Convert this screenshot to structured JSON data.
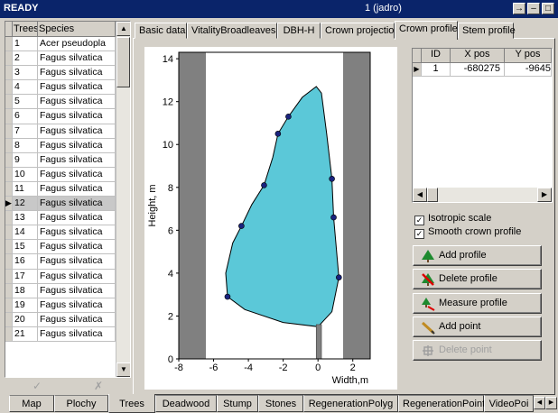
{
  "window": {
    "title": "READY",
    "center_text": "1 (jadro)",
    "buttons": {
      "pin": "→",
      "minimize": "–",
      "maximize": "□"
    }
  },
  "tree_list": {
    "columns": [
      "Trees",
      "Species"
    ],
    "rows": [
      {
        "tree": "1",
        "species": "Acer pseudopla"
      },
      {
        "tree": "2",
        "species": "Fagus silvatica"
      },
      {
        "tree": "3",
        "species": "Fagus silvatica"
      },
      {
        "tree": "4",
        "species": "Fagus silvatica"
      },
      {
        "tree": "5",
        "species": "Fagus silvatica"
      },
      {
        "tree": "6",
        "species": "Fagus silvatica"
      },
      {
        "tree": "7",
        "species": "Fagus silvatica"
      },
      {
        "tree": "8",
        "species": "Fagus silvatica"
      },
      {
        "tree": "9",
        "species": "Fagus silvatica"
      },
      {
        "tree": "10",
        "species": "Fagus silvatica"
      },
      {
        "tree": "11",
        "species": "Fagus silvatica"
      },
      {
        "tree": "12",
        "species": "Fagus silvatica"
      },
      {
        "tree": "13",
        "species": "Fagus silvatica"
      },
      {
        "tree": "14",
        "species": "Fagus silvatica"
      },
      {
        "tree": "15",
        "species": "Fagus silvatica"
      },
      {
        "tree": "16",
        "species": "Fagus silvatica"
      },
      {
        "tree": "17",
        "species": "Fagus silvatica"
      },
      {
        "tree": "18",
        "species": "Fagus silvatica"
      },
      {
        "tree": "19",
        "species": "Fagus silvatica"
      },
      {
        "tree": "20",
        "species": "Fagus silvatica"
      },
      {
        "tree": "21",
        "species": "Fagus silvatica"
      }
    ],
    "selected_tree": "12",
    "tool_icons": [
      "check-icon",
      "cross-icon"
    ]
  },
  "tabs": [
    {
      "label": "Basic data",
      "active": false
    },
    {
      "label": "VitalityBroadleaves",
      "active": false
    },
    {
      "label": "DBH-H",
      "active": false
    },
    {
      "label": "Crown projection",
      "active": false
    },
    {
      "label": "Crown profile",
      "active": true
    },
    {
      "label": "Stem profile",
      "active": false
    }
  ],
  "points_grid": {
    "columns": [
      "ID",
      "X pos",
      "Y pos"
    ],
    "rows": [
      {
        "id": "1",
        "x": "-680275",
        "y": "-9645"
      }
    ]
  },
  "options": {
    "isotropic_label": "Isotropic scale",
    "isotropic_checked": true,
    "smooth_label": "Smooth crown profile",
    "smooth_checked": true
  },
  "buttons": {
    "add_profile": "Add profile",
    "delete_profile": "Delete profile",
    "measure_profile": "Measure profile",
    "add_point": "Add point",
    "delete_point": "Delete point"
  },
  "bottom_tabs": [
    {
      "label": "Map",
      "active": false
    },
    {
      "label": "Plochy",
      "active": false
    },
    {
      "label": "Trees",
      "active": true
    },
    {
      "label": "Deadwood",
      "active": false
    },
    {
      "label": "Stump",
      "active": false
    },
    {
      "label": "Stones",
      "active": false
    },
    {
      "label": "RegenerationPolyg",
      "active": false
    },
    {
      "label": "RegenerationPoint",
      "active": false
    },
    {
      "label": "VideoPoi",
      "active": false
    }
  ],
  "chart_data": {
    "type": "area",
    "xlabel": "Width,m",
    "ylabel": "Height, m",
    "xlim": [
      -8,
      3
    ],
    "ylim": [
      0,
      14.3
    ],
    "x_ticks": [
      -8,
      -6,
      -4,
      -2,
      0,
      2
    ],
    "y_ticks": [
      0,
      2,
      4,
      6,
      8,
      10,
      12,
      14
    ],
    "crown_fill": "#5bc8d8",
    "crown_points": [
      {
        "x": -5.2,
        "y": 2.9
      },
      {
        "x": -4.4,
        "y": 6.2
      },
      {
        "x": -3.1,
        "y": 8.1
      },
      {
        "x": -2.3,
        "y": 10.5
      },
      {
        "x": -1.7,
        "y": 11.3
      },
      {
        "x": 0.8,
        "y": 8.4
      },
      {
        "x": 0.9,
        "y": 6.6
      },
      {
        "x": 1.2,
        "y": 3.8
      }
    ],
    "crown_outline": [
      {
        "x": -5.2,
        "y": 2.9
      },
      {
        "x": -5.3,
        "y": 4.0
      },
      {
        "x": -4.9,
        "y": 5.4
      },
      {
        "x": -4.4,
        "y": 6.2
      },
      {
        "x": -3.8,
        "y": 7.2
      },
      {
        "x": -3.1,
        "y": 8.1
      },
      {
        "x": -2.6,
        "y": 9.4
      },
      {
        "x": -2.3,
        "y": 10.5
      },
      {
        "x": -1.7,
        "y": 11.3
      },
      {
        "x": -0.9,
        "y": 12.2
      },
      {
        "x": -0.1,
        "y": 12.7
      },
      {
        "x": 0.2,
        "y": 12.4
      },
      {
        "x": 0.5,
        "y": 10.5
      },
      {
        "x": 0.8,
        "y": 8.4
      },
      {
        "x": 0.9,
        "y": 6.6
      },
      {
        "x": 1.2,
        "y": 3.8
      },
      {
        "x": 0.8,
        "y": 2.2
      },
      {
        "x": 0.0,
        "y": 1.5
      },
      {
        "x": -2.0,
        "y": 1.7
      },
      {
        "x": -4.2,
        "y": 2.3
      }
    ],
    "stem": {
      "x_left": -0.1,
      "x_right": 0.2,
      "y_bottom": 0,
      "y_top": 1.6
    }
  }
}
